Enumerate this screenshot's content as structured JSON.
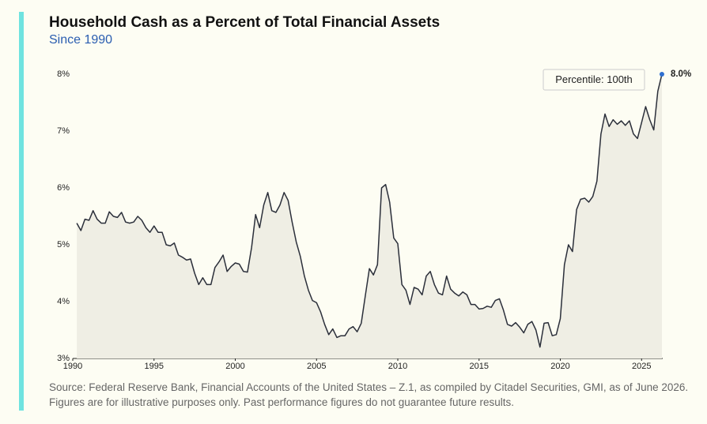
{
  "chart_data": {
    "type": "area-line",
    "title": "Household Cash as a Percent of Total Financial Assets",
    "subtitle": "Since 1990",
    "annotation": "Percentile: 100th",
    "source": "Source: Federal Reserve Bank, Financial Accounts of the United States – Z.1, as compiled by Citadel Securities, GMI, as of June 2026. Figures are for illustrative purposes only. Past performance figures do not guarantee future results.",
    "x": [
      1990.25,
      1990.5,
      1990.75,
      1991,
      1991.25,
      1991.5,
      1991.75,
      1992,
      1992.25,
      1992.5,
      1992.75,
      1993,
      1993.25,
      1993.5,
      1993.75,
      1994,
      1994.25,
      1994.5,
      1994.75,
      1995,
      1995.25,
      1995.5,
      1995.75,
      1996,
      1996.25,
      1996.5,
      1996.75,
      1997,
      1997.25,
      1997.5,
      1997.75,
      1998,
      1998.25,
      1998.5,
      1998.75,
      1999,
      1999.25,
      1999.5,
      1999.75,
      2000,
      2000.25,
      2000.5,
      2000.75,
      2001,
      2001.25,
      2001.5,
      2001.75,
      2002,
      2002.25,
      2002.5,
      2002.75,
      2003,
      2003.25,
      2003.5,
      2003.75,
      2004,
      2004.25,
      2004.5,
      2004.75,
      2005,
      2005.25,
      2005.5,
      2005.75,
      2006,
      2006.25,
      2006.5,
      2006.75,
      2007,
      2007.25,
      2007.5,
      2007.75,
      2008,
      2008.25,
      2008.5,
      2008.75,
      2009,
      2009.25,
      2009.5,
      2009.75,
      2010,
      2010.25,
      2010.5,
      2010.75,
      2011,
      2011.25,
      2011.5,
      2011.75,
      2012,
      2012.25,
      2012.5,
      2012.75,
      2013,
      2013.25,
      2013.5,
      2013.75,
      2014,
      2014.25,
      2014.5,
      2014.75,
      2015,
      2015.25,
      2015.5,
      2015.75,
      2016,
      2016.25,
      2016.5,
      2016.75,
      2017,
      2017.25,
      2017.5,
      2017.75,
      2018,
      2018.25,
      2018.5,
      2018.75,
      2019,
      2019.25,
      2019.5,
      2019.75,
      2020,
      2020.25,
      2020.5,
      2020.75,
      2021,
      2021.25,
      2021.5,
      2021.75,
      2022,
      2022.25,
      2022.5,
      2022.75,
      2023,
      2023.25,
      2023.5,
      2023.75,
      2024,
      2024.25,
      2024.5,
      2024.75,
      2025,
      2025.25,
      2025.5,
      2025.75,
      2026,
      2026.25
    ],
    "values": [
      5.38,
      5.25,
      5.45,
      5.43,
      5.6,
      5.45,
      5.38,
      5.38,
      5.58,
      5.5,
      5.48,
      5.57,
      5.4,
      5.38,
      5.4,
      5.5,
      5.43,
      5.3,
      5.22,
      5.33,
      5.22,
      5.22,
      5.0,
      4.98,
      5.03,
      4.82,
      4.78,
      4.73,
      4.75,
      4.5,
      4.3,
      4.42,
      4.3,
      4.3,
      4.6,
      4.7,
      4.82,
      4.53,
      4.62,
      4.68,
      4.66,
      4.53,
      4.52,
      4.95,
      5.53,
      5.3,
      5.7,
      5.92,
      5.6,
      5.57,
      5.7,
      5.92,
      5.78,
      5.4,
      5.05,
      4.8,
      4.45,
      4.2,
      4.02,
      3.98,
      3.82,
      3.6,
      3.42,
      3.52,
      3.37,
      3.4,
      3.4,
      3.52,
      3.56,
      3.47,
      3.62,
      4.1,
      4.58,
      4.47,
      4.65,
      6.0,
      6.06,
      5.75,
      5.12,
      5.02,
      4.3,
      4.2,
      3.95,
      4.25,
      4.22,
      4.12,
      4.45,
      4.53,
      4.3,
      4.15,
      4.12,
      4.45,
      4.22,
      4.15,
      4.1,
      4.17,
      4.12,
      3.95,
      3.95,
      3.87,
      3.88,
      3.92,
      3.9,
      4.02,
      4.05,
      3.85,
      3.6,
      3.57,
      3.63,
      3.55,
      3.45,
      3.6,
      3.65,
      3.5,
      3.2,
      3.62,
      3.63,
      3.4,
      3.42,
      3.7,
      4.65,
      5.0,
      4.88,
      5.62,
      5.8,
      5.82,
      5.75,
      5.85,
      6.12,
      6.95,
      7.3,
      7.08,
      7.2,
      7.12,
      7.18,
      7.1,
      7.18,
      6.95,
      6.87,
      7.15,
      7.43,
      7.2,
      7.02,
      7.7,
      8.0
    ],
    "value_labels": [
      null,
      null,
      null,
      null,
      null,
      null,
      null,
      null,
      null,
      null,
      null,
      null,
      null,
      null,
      null,
      null,
      null,
      null,
      null,
      null,
      null,
      null,
      null,
      null,
      null,
      null,
      null,
      null,
      null,
      null,
      null,
      null,
      null,
      null,
      null,
      null,
      null,
      null,
      null,
      null,
      null,
      null,
      null,
      null,
      null,
      null,
      null,
      null,
      null,
      null,
      null,
      null,
      null,
      null,
      null,
      null,
      null,
      null,
      null,
      null,
      null,
      null,
      null,
      null,
      null,
      null,
      null,
      null,
      null,
      null,
      null,
      null,
      null,
      null,
      null,
      null,
      null,
      null,
      null,
      null,
      null,
      null,
      null,
      null,
      null,
      null,
      null,
      null,
      null,
      null,
      null,
      null,
      null,
      null,
      null,
      null,
      null,
      null,
      null,
      null,
      null,
      null,
      null,
      null,
      null,
      null,
      null,
      null,
      null,
      null,
      null,
      null,
      null,
      null,
      null,
      null,
      null,
      null,
      null,
      null,
      null,
      null,
      null,
      null,
      null,
      null,
      null,
      null,
      null,
      null,
      null,
      null,
      null,
      null,
      null,
      null,
      null,
      null,
      null,
      null,
      null,
      null,
      null,
      null,
      "8.0%"
    ],
    "color": "#2b2f3a",
    "fill": "#efeee4",
    "highlight_color": "#2f6fd0",
    "xlim": [
      1990,
      2026.3
    ],
    "ylim": [
      3,
      8
    ],
    "xticks": [
      1990,
      1995,
      2000,
      2005,
      2010,
      2015,
      2020,
      2025
    ],
    "yticks": [
      {
        "value": 3,
        "label": "3%"
      },
      {
        "value": 4,
        "label": "4%"
      },
      {
        "value": 5,
        "label": "5%"
      },
      {
        "value": 6,
        "label": "6%"
      },
      {
        "value": 7,
        "label": "7%"
      },
      {
        "value": 8,
        "label": "8%"
      }
    ]
  }
}
